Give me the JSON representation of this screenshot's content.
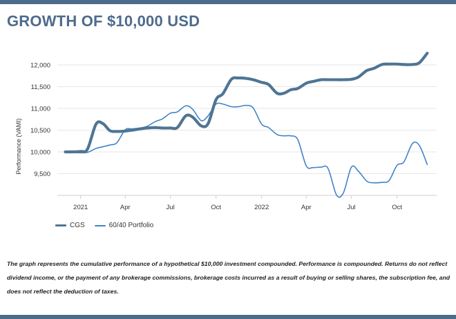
{
  "header": {
    "title": "GROWTH OF $10,000 USD"
  },
  "colors": {
    "accent": "#4d6b8c",
    "cgs": "#4f7594",
    "portfolio": "#3f84c6",
    "grid": "#e6e6e6"
  },
  "chart_data": {
    "type": "line",
    "title": "",
    "ylabel": "Performance (VAMI)",
    "xlabel": "",
    "ylim": [
      9000,
      12350
    ],
    "yticks": [
      9500,
      10000,
      10500,
      11000,
      11500,
      12000
    ],
    "ytick_labels": [
      "9,500",
      "10,000",
      "10,500",
      "11,000",
      "11,500",
      "12,000"
    ],
    "xlim": [
      "2020-11-15",
      "2022-12-20"
    ],
    "xticks": [
      "2021-01-01",
      "2021-04-01",
      "2021-07-01",
      "2021-10-01",
      "2022-01-01",
      "2022-04-01",
      "2022-07-01",
      "2022-10-01"
    ],
    "xtick_labels": [
      "2021",
      "Apr",
      "Jul",
      "Oct",
      "2022",
      "Apr",
      "Jul",
      "Oct"
    ],
    "grid": "horizontal",
    "legend_position": "bottom-left",
    "x": [
      "2020-12-01",
      "2021-01-01",
      "2021-01-15",
      "2021-02-01",
      "2021-02-15",
      "2021-03-01",
      "2021-03-15",
      "2021-04-01",
      "2021-04-15",
      "2021-05-01",
      "2021-05-15",
      "2021-06-01",
      "2021-06-15",
      "2021-07-01",
      "2021-07-15",
      "2021-08-01",
      "2021-08-15",
      "2021-09-01",
      "2021-09-15",
      "2021-10-01",
      "2021-10-15",
      "2021-11-01",
      "2021-11-15",
      "2021-12-01",
      "2021-12-15",
      "2022-01-01",
      "2022-01-15",
      "2022-02-01",
      "2022-02-15",
      "2022-03-01",
      "2022-03-15",
      "2022-04-01",
      "2022-04-15",
      "2022-05-01",
      "2022-05-15",
      "2022-06-01",
      "2022-06-15",
      "2022-07-01",
      "2022-07-15",
      "2022-08-01",
      "2022-08-15",
      "2022-09-01",
      "2022-09-15",
      "2022-10-01",
      "2022-10-15",
      "2022-11-01",
      "2022-11-15",
      "2022-12-01"
    ],
    "series": [
      {
        "name": "CGS",
        "values": [
          10000,
          10010,
          10070,
          10640,
          10650,
          10490,
          10470,
          10480,
          10500,
          10530,
          10550,
          10560,
          10550,
          10550,
          10560,
          10830,
          10800,
          10600,
          10650,
          11200,
          11340,
          11670,
          11700,
          11690,
          11660,
          11600,
          11550,
          11350,
          11350,
          11430,
          11460,
          11580,
          11620,
          11660,
          11660,
          11660,
          11660,
          11670,
          11720,
          11870,
          11920,
          12010,
          12020,
          12020,
          12010,
          12010,
          12050,
          12270
        ]
      },
      {
        "name": "60/40 Portfolio",
        "values": [
          10000,
          9980,
          9990,
          10080,
          10120,
          10160,
          10210,
          10510,
          10530,
          10550,
          10590,
          10700,
          10760,
          10890,
          10920,
          11060,
          10980,
          10720,
          10830,
          11100,
          11100,
          11040,
          11040,
          11070,
          11010,
          10640,
          10560,
          10400,
          10370,
          10370,
          10280,
          9680,
          9640,
          9650,
          9620,
          9010,
          9060,
          9650,
          9560,
          9330,
          9290,
          9300,
          9340,
          9690,
          9770,
          10190,
          10150,
          9710
        ]
      }
    ]
  },
  "legend": {
    "items": [
      "CGS",
      "60/40 Portfolio"
    ]
  },
  "footer": {
    "disclaimer": "The graph represents the cumulative performance of a hypothetical $10,000 investment compounded. Performance is compounded. Returns do not reflect dividend income, or the payment of any brokerage commissions, brokerage costs incurred as a result of buying or selling shares, the subscription fee, and does not reflect the deduction of taxes."
  }
}
